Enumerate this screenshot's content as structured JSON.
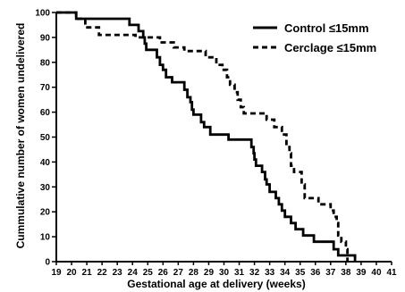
{
  "chart_data": {
    "type": "line",
    "step": true,
    "xlabel": "Gestational age at delivery (weeks)",
    "ylabel": "Cummulative number of women undelivered",
    "xlim": [
      19,
      41
    ],
    "ylim": [
      0,
      100
    ],
    "x_ticks": [
      "19",
      "20",
      "21",
      "22",
      "23",
      "24",
      "25",
      "26",
      "27",
      "28",
      "29",
      "30",
      "31",
      "32",
      "33",
      "34",
      "35",
      "36",
      "37",
      "38",
      "39",
      "40",
      "41"
    ],
    "y_ticks": [
      "0",
      "10",
      "20",
      "30",
      "40",
      "50",
      "60",
      "70",
      "80",
      "90",
      "100"
    ],
    "grid": false,
    "legend_position": "top-right",
    "series": [
      {
        "name": "Control ≤15mm",
        "style": "solid",
        "color": "#000000",
        "points": [
          [
            19,
            100
          ],
          [
            20.3,
            97.5
          ],
          [
            23.8,
            95
          ],
          [
            24.4,
            92.5
          ],
          [
            24.7,
            90
          ],
          [
            24.8,
            87.5
          ],
          [
            24.9,
            85
          ],
          [
            25.6,
            82
          ],
          [
            25.8,
            79
          ],
          [
            26.0,
            77
          ],
          [
            26.2,
            74
          ],
          [
            26.6,
            72
          ],
          [
            27.4,
            69
          ],
          [
            27.6,
            66
          ],
          [
            27.8,
            64
          ],
          [
            27.9,
            61
          ],
          [
            28.0,
            59
          ],
          [
            28.5,
            56
          ],
          [
            28.7,
            54
          ],
          [
            29.1,
            51
          ],
          [
            30.3,
            49
          ],
          [
            31.8,
            46
          ],
          [
            31.95,
            43.5
          ],
          [
            32.0,
            41
          ],
          [
            32.1,
            38.5
          ],
          [
            32.5,
            36
          ],
          [
            32.7,
            33
          ],
          [
            32.8,
            31
          ],
          [
            33.0,
            28
          ],
          [
            33.4,
            25.5
          ],
          [
            33.6,
            23
          ],
          [
            33.8,
            20.5
          ],
          [
            34.0,
            18
          ],
          [
            34.4,
            15.5
          ],
          [
            34.7,
            13
          ],
          [
            35.2,
            10.5
          ],
          [
            35.9,
            8
          ],
          [
            37.2,
            5
          ],
          [
            37.5,
            2.5
          ],
          [
            38.6,
            0
          ]
        ]
      },
      {
        "name": "Cerclage ≤15mm",
        "style": "dashed",
        "color": "#000000",
        "points": [
          [
            19,
            100
          ],
          [
            20.3,
            97.5
          ],
          [
            20.9,
            94
          ],
          [
            21.8,
            91
          ],
          [
            24.2,
            90
          ],
          [
            25.8,
            88
          ],
          [
            26.7,
            86
          ],
          [
            27.4,
            84.5
          ],
          [
            28.8,
            82
          ],
          [
            29.5,
            79
          ],
          [
            29.9,
            77
          ],
          [
            30.2,
            74
          ],
          [
            30.4,
            71
          ],
          [
            30.7,
            68
          ],
          [
            30.9,
            65
          ],
          [
            31.1,
            62
          ],
          [
            31.3,
            59.5
          ],
          [
            32.8,
            57
          ],
          [
            33.3,
            54
          ],
          [
            33.8,
            51
          ],
          [
            34.1,
            46
          ],
          [
            34.3,
            43.5
          ],
          [
            34.4,
            38.5
          ],
          [
            34.6,
            36
          ],
          [
            35.1,
            31
          ],
          [
            35.3,
            25.5
          ],
          [
            36.2,
            23
          ],
          [
            37.0,
            20.5
          ],
          [
            37.2,
            18
          ],
          [
            37.4,
            15.5
          ],
          [
            37.5,
            10.5
          ],
          [
            37.7,
            8
          ],
          [
            38.0,
            5
          ],
          [
            38.1,
            0
          ]
        ]
      }
    ]
  }
}
